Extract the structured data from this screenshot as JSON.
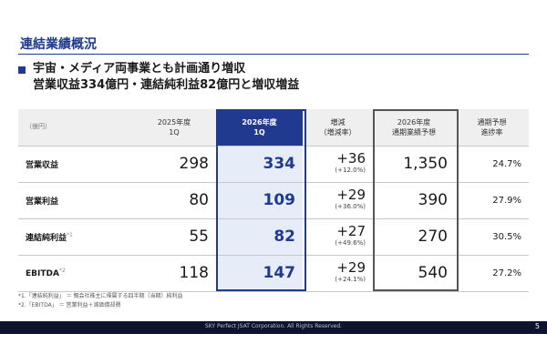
{
  "title": "連結業績概況",
  "headline": {
    "line1": "宇宙・メディア両事業とも計画通り増収",
    "line2": "営業収益334億円・連結純利益82億円と増収増益"
  },
  "table": {
    "unit": "（億円）",
    "headers": [
      {
        "l1": "2025年度",
        "l2": "1Q"
      },
      {
        "l1": "2026年度",
        "l2": "1Q"
      },
      {
        "l1": "増減",
        "l2": "（増減率）"
      },
      {
        "l1": "2026年度",
        "l2": "通期業績予想"
      },
      {
        "l1": "通期予想",
        "l2": "進捗率"
      }
    ],
    "rows": [
      {
        "label": "営業収益",
        "note": "",
        "prev": "298",
        "cur": "334",
        "diff": "+36",
        "rate": "(+12.0%)",
        "forecast": "1,350",
        "progress": "24.7%"
      },
      {
        "label": "営業利益",
        "note": "",
        "prev": "80",
        "cur": "109",
        "diff": "+29",
        "rate": "(+36.0%)",
        "forecast": "390",
        "progress": "27.9%"
      },
      {
        "label": "連結純利益",
        "note": "*1",
        "prev": "55",
        "cur": "82",
        "diff": "+27",
        "rate": "(+49.6%)",
        "forecast": "270",
        "progress": "30.5%"
      },
      {
        "label": "EBITDA",
        "note": "*2",
        "prev": "118",
        "cur": "147",
        "diff": "+29",
        "rate": "(+24.1%)",
        "forecast": "540",
        "progress": "27.2%"
      }
    ]
  },
  "notes": [
    "*1.「連結純利益」 ＝ 親会社株主に帰属する四半期（当期）純利益",
    "*2.「EBITDA」 ＝ 営業利益＋減価償却費"
  ],
  "footer": {
    "copyright": "SKY Perfect JSAT Corporation. All Rights Reserved.",
    "page": "5"
  }
}
